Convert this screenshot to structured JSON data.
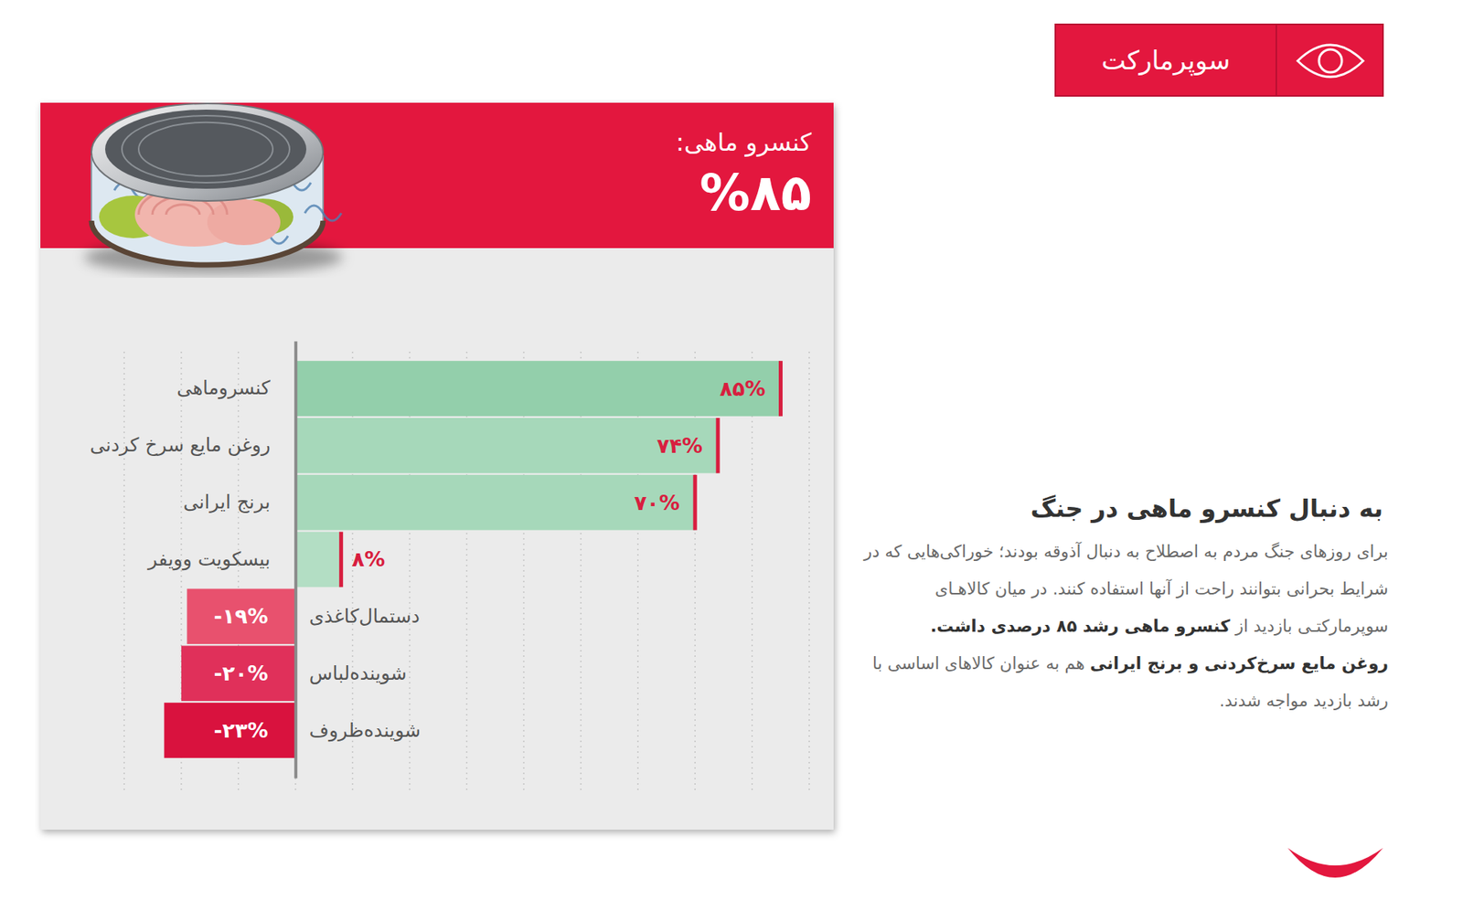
{
  "badge": "سوپرمارکت",
  "card": {
    "title": "کنسرو ماهی:",
    "value": "%۸۵"
  },
  "article": {
    "heading": "به دنبال کنسرو ماهی در جنگ",
    "paragraphs": [
      [
        {
          "text": "برای روزهای جنگ مردم به اصطلاح به دنبال آذوقه بودند؛ خوراکی‌هایی که در شرایط بحرانی بتوانند راحت از آنها استفاده کنند. در میان کالاهـای سوپرمارکتـی بازدید از ",
          "bold": false
        },
        {
          "text": "کنسرو ماهی رشد ۸۵ درصدی داشت.",
          "bold": true
        }
      ],
      [
        {
          "text": "روغن مایع سرخ‌کردنی و برنج ایرانی",
          "bold": true
        },
        {
          "text": " هم به عنوان کالاهای اساسی با رشد بازدید مواجه شدند.",
          "bold": false
        }
      ]
    ]
  },
  "chart_data": {
    "type": "bar",
    "orientation": "horizontal",
    "categories": [
      "کنسروماهی",
      "روغن مایع سرخ کردنی",
      "برنج ایرانی",
      "بیسکویت وویفر",
      "دستمال‌کاغذی",
      "شوینده‌لباس",
      "شوینده‌ظروف"
    ],
    "values": [
      85,
      74,
      70,
      8,
      -19,
      -20,
      -23
    ],
    "value_labels": [
      "۸۵%",
      "۷۴%",
      "۷۰%",
      "۸%",
      "-۱۹%",
      "-۲۰%",
      "-۲۳%"
    ],
    "colors": [
      "#93cfab",
      "#a6d8ba",
      "#a6d8ba",
      "#b3dec4",
      "#e8516e",
      "#e0305a",
      "#d9123e"
    ],
    "xlim": [
      -30,
      90
    ],
    "xticks": [
      -30,
      -20,
      -10,
      0,
      10,
      20,
      30,
      40,
      50,
      60,
      70,
      80,
      90
    ],
    "grid": true,
    "data_labels": true,
    "tick_labels": "y"
  }
}
